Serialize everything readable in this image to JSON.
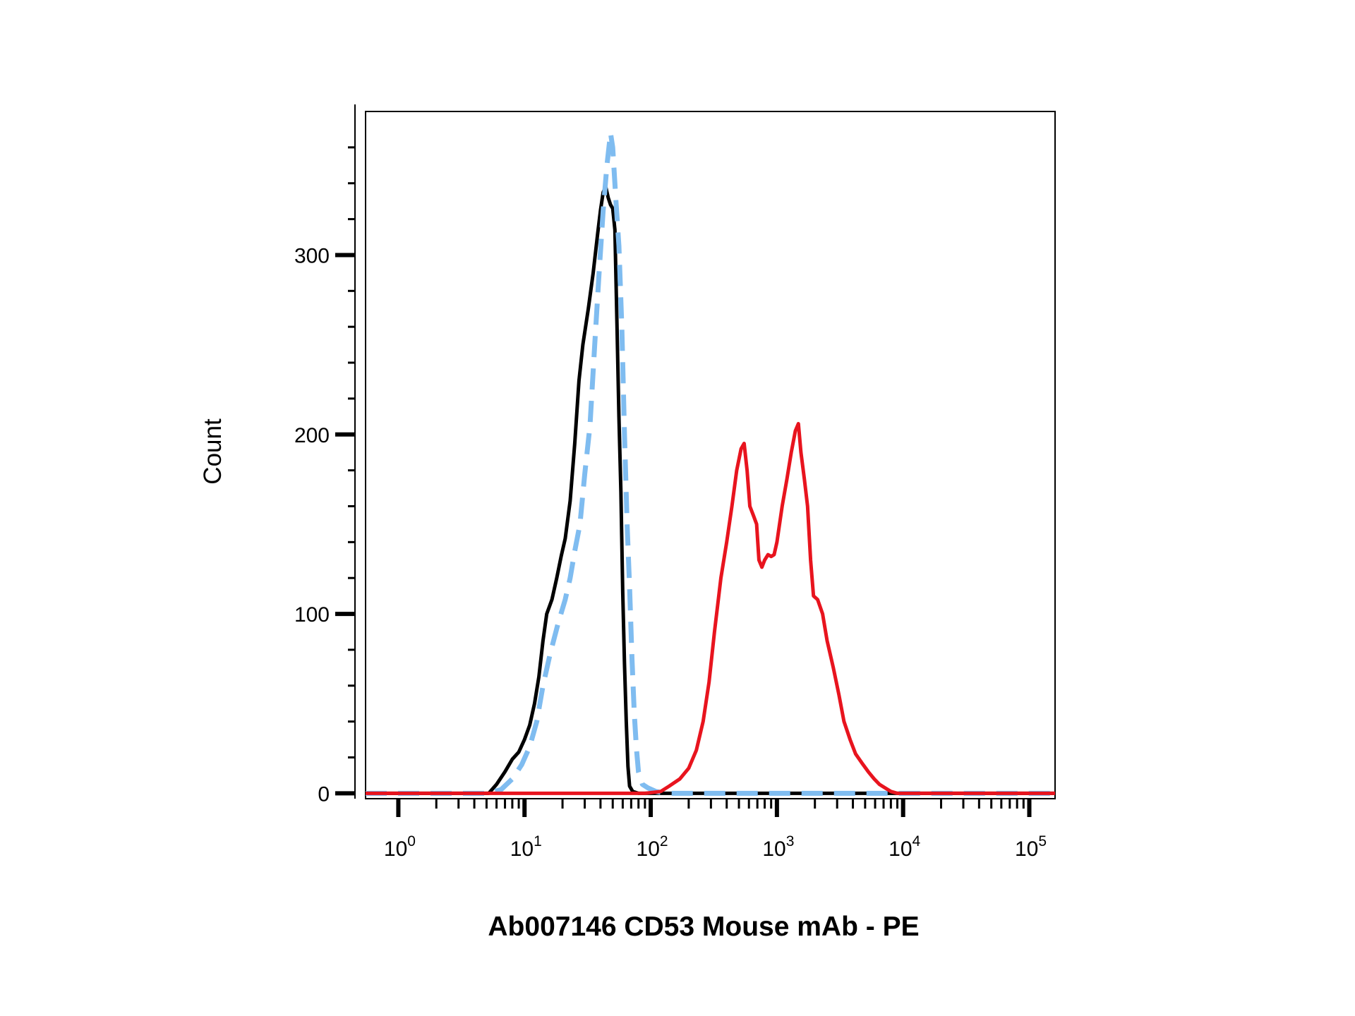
{
  "chart_data": {
    "type": "line",
    "title": "",
    "xlabel": "Ab007146 CD53 Mouse mAb - PE",
    "ylabel": "Count",
    "x_scale": "log",
    "xlim": [
      0.55,
      160000
    ],
    "ylim": [
      -3,
      380
    ],
    "x_ticks": [
      {
        "base": "10",
        "exp": "0",
        "value": 1
      },
      {
        "base": "10",
        "exp": "1",
        "value": 10
      },
      {
        "base": "10",
        "exp": "2",
        "value": 100
      },
      {
        "base": "10",
        "exp": "3",
        "value": 1000
      },
      {
        "base": "10",
        "exp": "4",
        "value": 10000
      },
      {
        "base": "10",
        "exp": "5",
        "value": 100000
      }
    ],
    "y_ticks": [
      0,
      100,
      200,
      300
    ],
    "grid": false,
    "legend": "none",
    "series": [
      {
        "color": "#000000",
        "style": "solid",
        "points": [
          [
            0.55,
            0
          ],
          [
            4,
            0
          ],
          [
            5.2,
            0
          ],
          [
            6,
            5
          ],
          [
            7,
            12
          ],
          [
            8,
            19
          ],
          [
            9,
            23
          ],
          [
            10,
            30
          ],
          [
            11,
            38
          ],
          [
            12,
            50
          ],
          [
            13,
            65
          ],
          [
            14,
            85
          ],
          [
            15,
            100
          ],
          [
            16.5,
            108
          ],
          [
            18,
            120
          ],
          [
            19.5,
            132
          ],
          [
            21,
            142
          ],
          [
            23,
            163
          ],
          [
            25,
            195
          ],
          [
            27,
            230
          ],
          [
            29,
            250
          ],
          [
            32,
            270
          ],
          [
            35,
            290
          ],
          [
            38,
            312
          ],
          [
            40,
            325
          ],
          [
            42,
            335
          ],
          [
            44,
            338
          ],
          [
            46,
            332
          ],
          [
            48,
            328
          ],
          [
            50,
            326
          ],
          [
            52,
            314
          ],
          [
            54,
            262
          ],
          [
            56,
            210
          ],
          [
            58,
            168
          ],
          [
            60,
            112
          ],
          [
            62,
            72
          ],
          [
            64,
            40
          ],
          [
            66,
            15
          ],
          [
            68,
            4
          ],
          [
            72,
            1
          ],
          [
            80,
            0
          ],
          [
            160000,
            0
          ]
        ]
      },
      {
        "color": "#7fbcf0",
        "style": "dashed",
        "points": [
          [
            0.55,
            0
          ],
          [
            3.5,
            0
          ],
          [
            5,
            0
          ],
          [
            6.5,
            2
          ],
          [
            8,
            8
          ],
          [
            9.5,
            16
          ],
          [
            11,
            26
          ],
          [
            12.5,
            40
          ],
          [
            14,
            60
          ],
          [
            16,
            78
          ],
          [
            18.5,
            95
          ],
          [
            21,
            108
          ],
          [
            23,
            120
          ],
          [
            25,
            135
          ],
          [
            27.5,
            150
          ],
          [
            30,
            178
          ],
          [
            33,
            205
          ],
          [
            36,
            250
          ],
          [
            39,
            290
          ],
          [
            42,
            325
          ],
          [
            45,
            350
          ],
          [
            48,
            368
          ],
          [
            50,
            360
          ],
          [
            53,
            330
          ],
          [
            56,
            305
          ],
          [
            59,
            260
          ],
          [
            62,
            200
          ],
          [
            65,
            150
          ],
          [
            68,
            115
          ],
          [
            71,
            75
          ],
          [
            74,
            45
          ],
          [
            77,
            25
          ],
          [
            80,
            12
          ],
          [
            86,
            5
          ],
          [
            95,
            3
          ],
          [
            110,
            1
          ],
          [
            130,
            0
          ],
          [
            160000,
            0
          ]
        ]
      },
      {
        "color": "#e8141e",
        "style": "solid",
        "points": [
          [
            0.55,
            0
          ],
          [
            90,
            0
          ],
          [
            120,
            1
          ],
          [
            140,
            4
          ],
          [
            170,
            8
          ],
          [
            200,
            14
          ],
          [
            230,
            24
          ],
          [
            260,
            40
          ],
          [
            290,
            62
          ],
          [
            320,
            90
          ],
          [
            360,
            120
          ],
          [
            400,
            140
          ],
          [
            440,
            160
          ],
          [
            480,
            180
          ],
          [
            520,
            192
          ],
          [
            550,
            195
          ],
          [
            580,
            180
          ],
          [
            610,
            160
          ],
          [
            650,
            155
          ],
          [
            690,
            150
          ],
          [
            720,
            130
          ],
          [
            760,
            126
          ],
          [
            800,
            130
          ],
          [
            850,
            133
          ],
          [
            900,
            132
          ],
          [
            950,
            133
          ],
          [
            1000,
            140
          ],
          [
            1100,
            160
          ],
          [
            1200,
            175
          ],
          [
            1300,
            190
          ],
          [
            1400,
            202
          ],
          [
            1480,
            206
          ],
          [
            1550,
            190
          ],
          [
            1650,
            175
          ],
          [
            1750,
            160
          ],
          [
            1850,
            130
          ],
          [
            1950,
            110
          ],
          [
            2100,
            108
          ],
          [
            2300,
            100
          ],
          [
            2500,
            85
          ],
          [
            2800,
            70
          ],
          [
            3100,
            55
          ],
          [
            3400,
            40
          ],
          [
            3800,
            30
          ],
          [
            4200,
            22
          ],
          [
            4700,
            17
          ],
          [
            5300,
            12
          ],
          [
            5900,
            8
          ],
          [
            6500,
            5
          ],
          [
            7200,
            3
          ],
          [
            8000,
            1
          ],
          [
            9000,
            0
          ],
          [
            160000,
            0
          ]
        ]
      }
    ]
  }
}
